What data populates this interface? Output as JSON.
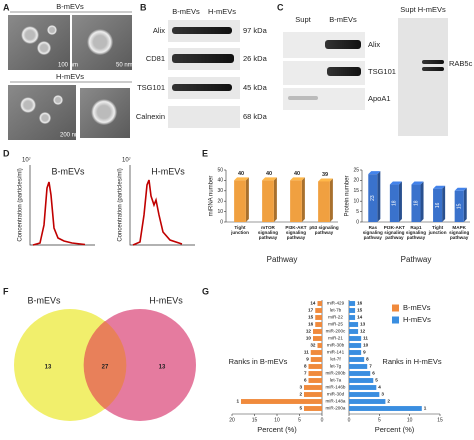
{
  "panels": {
    "a": {
      "label": "A",
      "top": "B-mEVs",
      "bottom": "H-mEVs",
      "scales": [
        "100 nm",
        "50 nm",
        "200 nm"
      ]
    },
    "b": {
      "label": "B",
      "columns": [
        "B-mEVs",
        "H-mEVs"
      ],
      "rows": [
        {
          "name": "Alix",
          "size": "97 kDa"
        },
        {
          "name": "CD81",
          "size": "26 kDa"
        },
        {
          "name": "TSG101",
          "size": "45 kDa"
        },
        {
          "name": "Calnexin",
          "size": "68 kDa"
        }
      ]
    },
    "c": {
      "label": "C",
      "columns": [
        "Supt",
        "B-mEVs"
      ],
      "rows": [
        "Alix",
        "TSG101",
        "ApoA1"
      ],
      "right_header": "Supt H-mEVs",
      "right_row": "RAB5c"
    },
    "d": {
      "label": "D",
      "ylabel": "Concentration (particles/ml)",
      "exponent": "10⁷",
      "plots": [
        "B-mEVs",
        "H-mEVs"
      ]
    },
    "e": {
      "label": "E",
      "charts": [
        {
          "type": "bar",
          "ylabel": "miRNA number",
          "xlabel": "Pathway",
          "categories": [
            "Tight junction",
            "mTOR signaling pathway",
            "PI3K-AKT signaling pathway",
            "p53 signaling pathway"
          ],
          "values": [
            40,
            40,
            40,
            39
          ],
          "color": "#f0a040",
          "ylim": [
            0,
            50
          ],
          "yticks": [
            0,
            10,
            20,
            30,
            40,
            50
          ],
          "value_label_position": "above"
        },
        {
          "type": "bar",
          "ylabel": "Protein number",
          "xlabel": "Pathway",
          "categories": [
            "Ras signaling pathway",
            "PI3K-AKT signaling pathway",
            "Rap1 signaling pathway",
            "Tight junction",
            "MAPK signaling pathway"
          ],
          "values": [
            23,
            18,
            18,
            16,
            15
          ],
          "color": "#3a72cc",
          "ylim": [
            0,
            25
          ],
          "yticks": [
            0,
            5,
            10,
            15,
            20,
            25
          ],
          "value_label_position": "inside"
        }
      ]
    },
    "f": {
      "label": "F",
      "sets": [
        "B-mEVs",
        "H-mEVs"
      ],
      "counts": [
        13,
        27,
        13
      ]
    },
    "g": {
      "label": "G",
      "xlabel": "Percent (%)",
      "left_label": "Ranks in B-mEVs",
      "right_label": "Ranks in H-mEVs",
      "categories": [
        "miR-429",
        "let-7b",
        "miR-22",
        "miR-25",
        "miR-200c",
        "miR-21",
        "miR-30b",
        "miR-141",
        "let-7f",
        "let-7g",
        "miR-200b",
        "let-7a",
        "miR-146b",
        "miR-30d",
        "miR-148a",
        "miR-200a"
      ],
      "series": [
        {
          "name": "B-mEVs",
          "color": "#f08a3c",
          "values": [
            1,
            1.5,
            1.5,
            1.5,
            2,
            2,
            1,
            2.5,
            2.5,
            3,
            3,
            3,
            4,
            4,
            18,
            4
          ],
          "ranks": [
            14,
            17,
            15,
            16,
            12,
            10,
            32,
            11,
            9,
            8,
            7,
            6,
            3,
            2,
            1,
            5
          ]
        },
        {
          "name": "H-mEVs",
          "color": "#3a8ee0",
          "values": [
            1,
            1,
            1,
            1.5,
            1.5,
            2,
            2,
            2,
            2.5,
            3,
            3.5,
            4,
            4.5,
            5,
            6,
            12
          ],
          "ranks": [
            16,
            15,
            14,
            13,
            12,
            11,
            10,
            9,
            8,
            7,
            6,
            5,
            4,
            3,
            2,
            1
          ]
        }
      ],
      "left_xlim": [
        0,
        20
      ],
      "left_xticks": [
        20,
        15,
        10,
        5,
        0
      ],
      "right_xlim": [
        0,
        15
      ],
      "right_xticks": [
        0,
        5,
        10,
        15
      ]
    }
  }
}
